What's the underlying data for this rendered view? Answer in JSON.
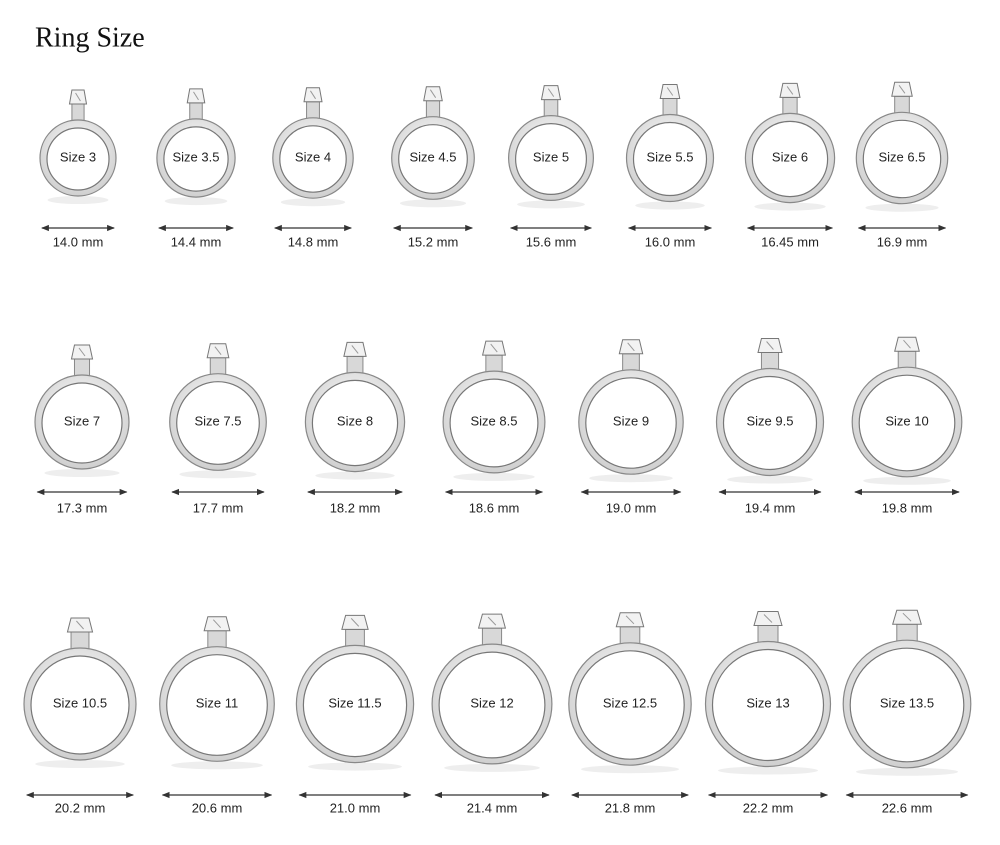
{
  "title": "Ring Size",
  "rows": [
    [
      {
        "size": "Size 3",
        "mm": "14.0 mm"
      },
      {
        "size": "Size 3.5",
        "mm": "14.4 mm"
      },
      {
        "size": "Size 4",
        "mm": "14.8 mm"
      },
      {
        "size": "Size 4.5",
        "mm": "15.2 mm"
      },
      {
        "size": "Size 5",
        "mm": "15.6 mm"
      },
      {
        "size": "Size 5.5",
        "mm": "16.0 mm"
      },
      {
        "size": "Size 6",
        "mm": "16.45 mm"
      },
      {
        "size": "Size 6.5",
        "mm": "16.9 mm"
      }
    ],
    [
      {
        "size": "Size 7",
        "mm": "17.3 mm"
      },
      {
        "size": "Size 7.5",
        "mm": "17.7 mm"
      },
      {
        "size": "Size 8",
        "mm": "18.2 mm"
      },
      {
        "size": "Size 8.5",
        "mm": "18.6 mm"
      },
      {
        "size": "Size 9",
        "mm": "19.0 mm"
      },
      {
        "size": "Size 9.5",
        "mm": "19.4 mm"
      },
      {
        "size": "Size 10",
        "mm": "19.8 mm"
      }
    ],
    [
      {
        "size": "Size 10.5",
        "mm": "20.2 mm"
      },
      {
        "size": "Size 11",
        "mm": "20.6 mm"
      },
      {
        "size": "Size 11.5",
        "mm": "21.0 mm"
      },
      {
        "size": "Size 12",
        "mm": "21.4 mm"
      },
      {
        "size": "Size 12.5",
        "mm": "21.8 mm"
      },
      {
        "size": "Size 13",
        "mm": "22.2 mm"
      },
      {
        "size": "Size 13.5",
        "mm": "22.6 mm"
      }
    ]
  ]
}
